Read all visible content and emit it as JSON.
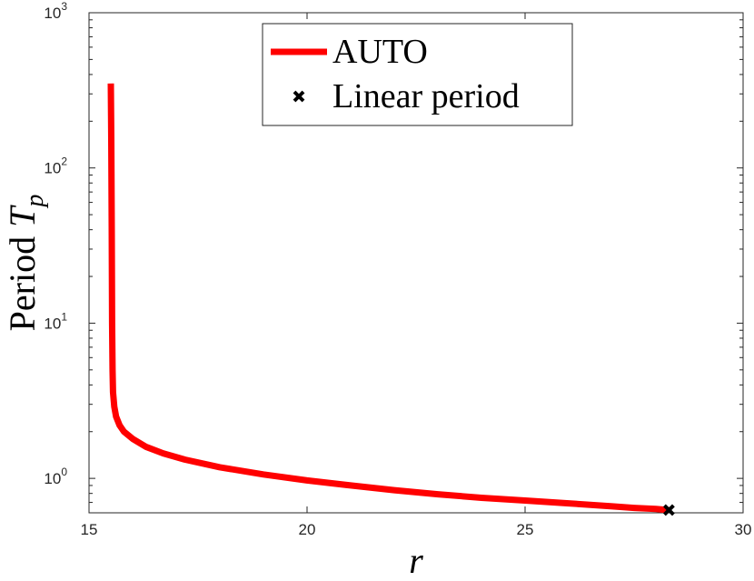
{
  "chart_data": {
    "type": "line",
    "xlabel": "r",
    "ylabel": {
      "text": "Period ",
      "symbol": "T",
      "subscript": "p"
    },
    "xlim": [
      15,
      30
    ],
    "ylim": [
      0.6,
      1000
    ],
    "yscale": "log",
    "xticks": [
      "15",
      "20",
      "25",
      "30"
    ],
    "yticks": [
      {
        "value": 1,
        "base": "10",
        "exp": "0"
      },
      {
        "value": 10,
        "base": "10",
        "exp": "1"
      },
      {
        "value": 100,
        "base": "10",
        "exp": "2"
      },
      {
        "value": 1000,
        "base": "10",
        "exp": "3"
      }
    ],
    "grid": false,
    "legend": {
      "position": "top-center"
    },
    "series": [
      {
        "name": "AUTO",
        "kind": "line",
        "color": "#ff0000",
        "x": [
          15.5,
          15.51,
          15.52,
          15.53,
          15.54,
          15.55,
          15.58,
          15.62,
          15.7,
          15.8,
          16.0,
          16.3,
          16.7,
          17.2,
          18.0,
          19.0,
          20.0,
          21.0,
          22.0,
          23.0,
          24.0,
          25.0,
          26.0,
          27.0,
          27.5,
          28.0,
          28.3
        ],
        "y": [
          350,
          150,
          40,
          10,
          5.0,
          3.6,
          2.9,
          2.5,
          2.2,
          2.0,
          1.8,
          1.6,
          1.45,
          1.32,
          1.18,
          1.06,
          0.97,
          0.9,
          0.84,
          0.79,
          0.75,
          0.72,
          0.69,
          0.66,
          0.645,
          0.635,
          0.625
        ]
      },
      {
        "name": "Linear period",
        "kind": "marker",
        "color": "#000000",
        "x": [
          28.3
        ],
        "y": [
          0.625
        ]
      }
    ]
  }
}
